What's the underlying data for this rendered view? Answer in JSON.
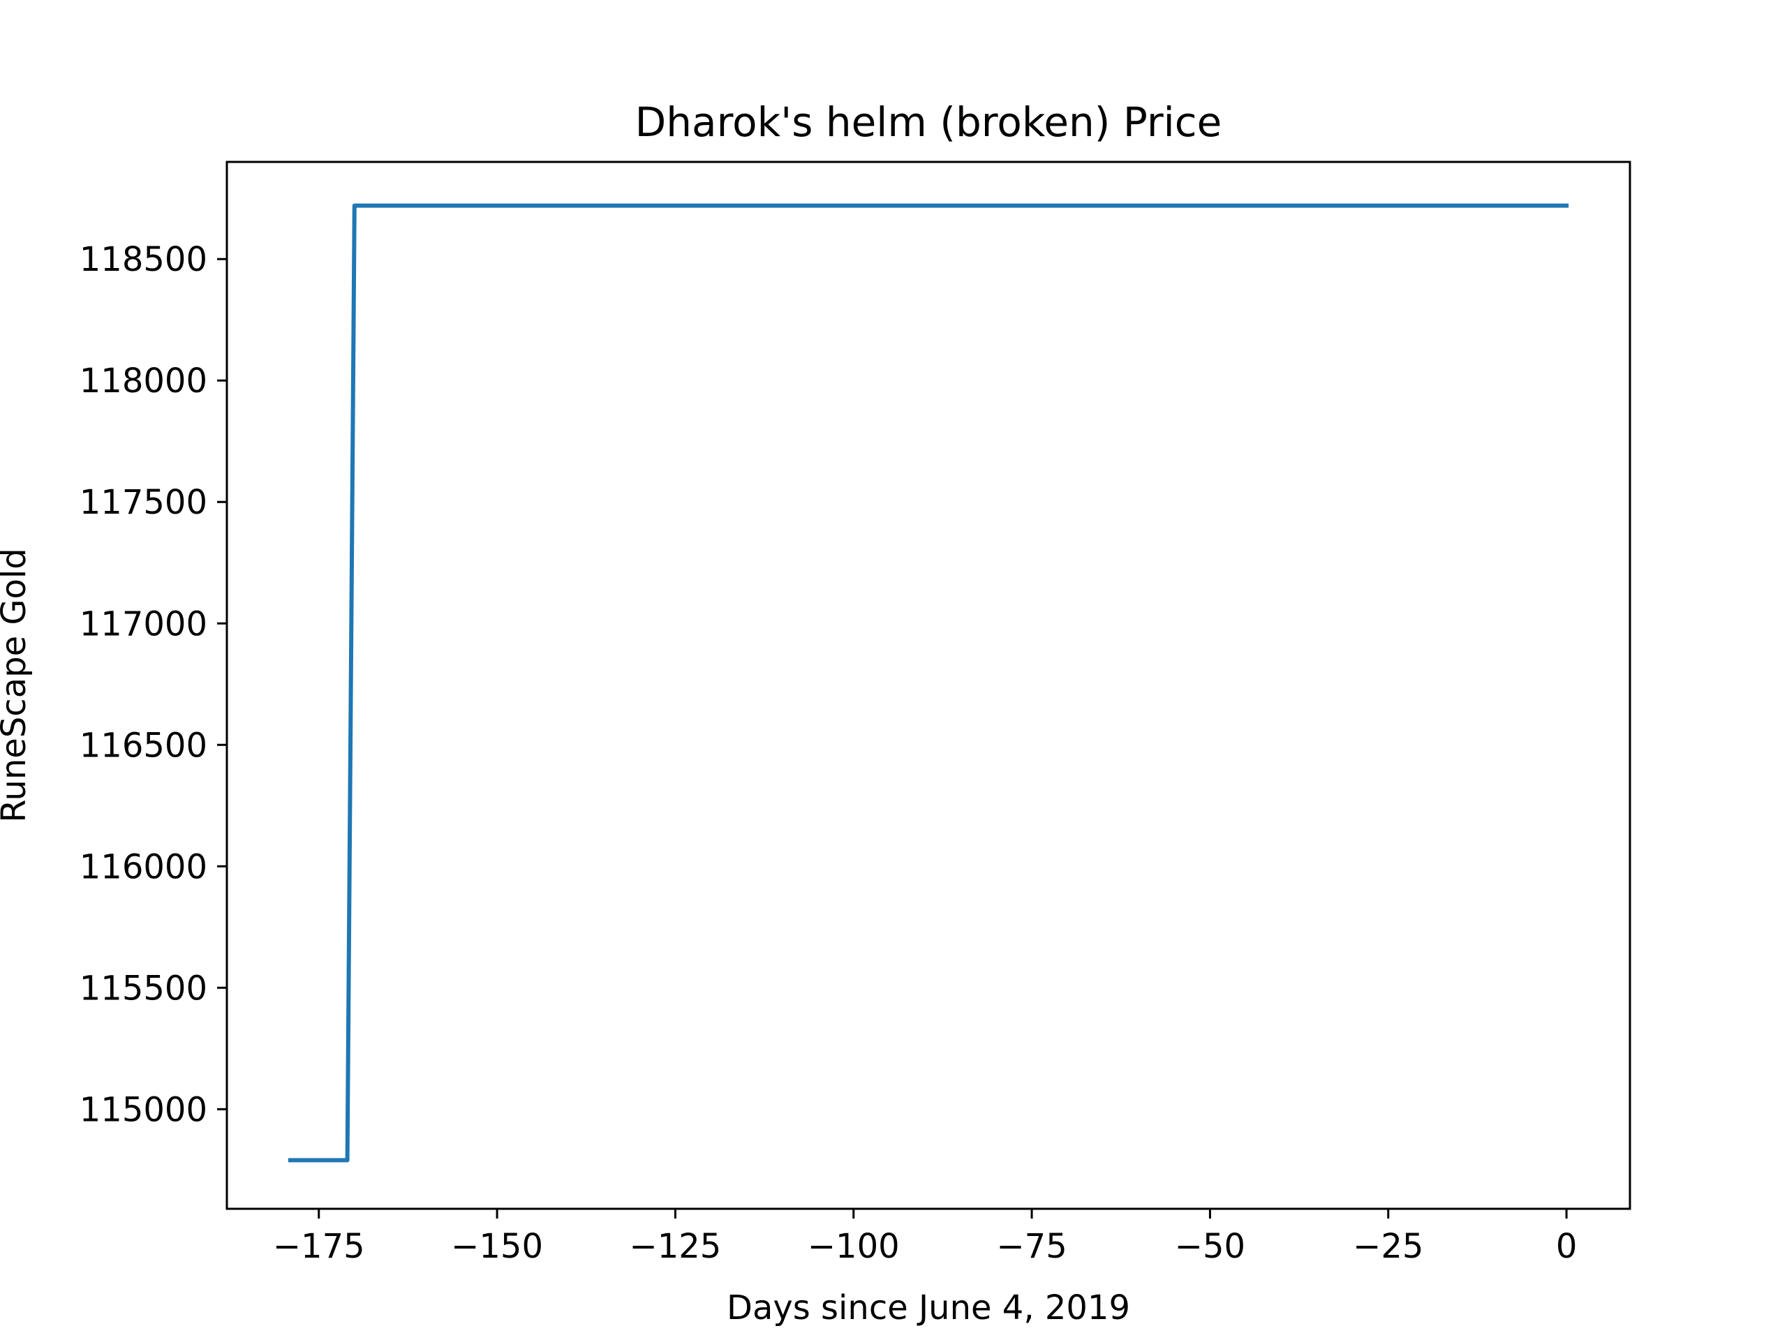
{
  "chart_data": {
    "type": "line",
    "title": "Dharok's helm (broken) Price",
    "xlabel": "Days since June 4, 2019",
    "ylabel": "RuneScape Gold",
    "xlim": [
      -187.9,
      8.9
    ],
    "ylim": [
      114590,
      118900
    ],
    "x_ticks": [
      -175,
      -150,
      -125,
      -100,
      -75,
      -50,
      -25,
      0
    ],
    "x_tick_labels": [
      "−175",
      "−150",
      "−125",
      "−100",
      "−75",
      "−50",
      "−25",
      "0"
    ],
    "y_ticks": [
      115000,
      115500,
      116000,
      116500,
      117000,
      117500,
      118000,
      118500
    ],
    "y_tick_labels": [
      "115000",
      "115500",
      "116000",
      "116500",
      "117000",
      "117500",
      "118000",
      "118500"
    ],
    "grid": false,
    "series": [
      {
        "color": "#1f77b4",
        "x": [
          -179,
          -178,
          -177,
          -176,
          -175,
          -174,
          -173,
          -172,
          -171,
          -170,
          -169,
          0
        ],
        "y": [
          114790,
          114790,
          114790,
          114790,
          114790,
          114790,
          114790,
          114790,
          114790,
          118720,
          118720,
          118720
        ]
      }
    ]
  }
}
